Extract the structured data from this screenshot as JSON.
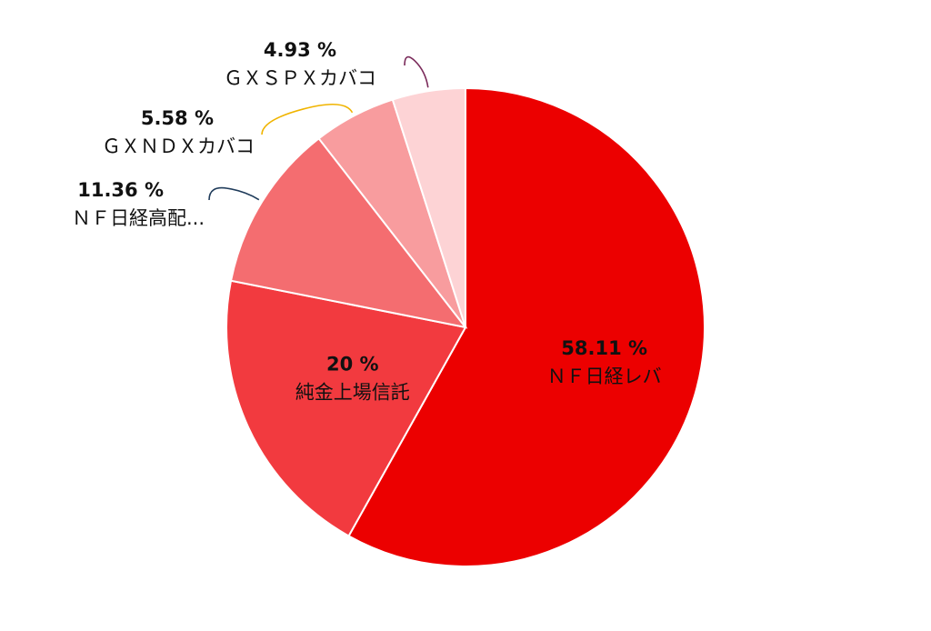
{
  "chart_data": {
    "type": "pie",
    "categories": [
      "ＮＦ日経レバ",
      "純金上場信託",
      "ＮＦ日経高配...",
      "ＧＸＮＤＸカバコ",
      "ＧＸＳＰＸカバコ"
    ],
    "values": [
      58.11,
      20,
      11.36,
      5.58,
      4.93
    ],
    "value_labels": [
      "58.11 %",
      "20 %",
      "11.36 %",
      "5.58 %",
      "4.93 %"
    ],
    "colors": [
      "#ec0000",
      "#f23a3f",
      "#f46d70",
      "#f89c9e",
      "#fdd3d5"
    ],
    "leader_colors": [
      null,
      null,
      "#1f3b5a",
      "#f0b400",
      "#7a2a5a"
    ]
  }
}
